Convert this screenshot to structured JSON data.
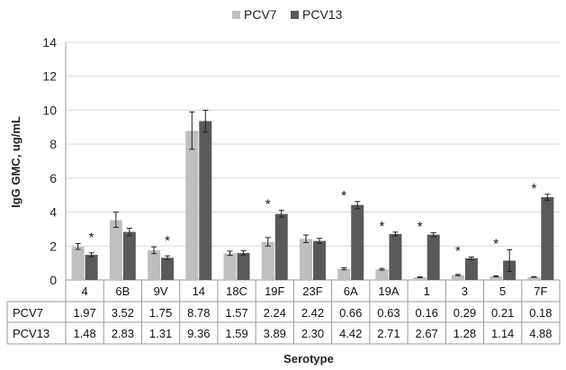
{
  "chart_data": {
    "type": "bar",
    "title": "",
    "xlabel": "Serotype",
    "ylabel": "IgG GMC, ug/mL",
    "ylim": [
      0,
      14
    ],
    "yticks": [
      0,
      2,
      4,
      6,
      8,
      10,
      12,
      14
    ],
    "categories": [
      "4",
      "6B",
      "9V",
      "14",
      "18C",
      "19F",
      "23F",
      "6A",
      "19A",
      "1",
      "3",
      "5",
      "7F"
    ],
    "series": [
      {
        "name": "PCV7",
        "color": "#bfbfbf",
        "values": [
          1.97,
          3.52,
          1.75,
          8.78,
          1.57,
          2.24,
          2.42,
          0.66,
          0.63,
          0.16,
          0.29,
          0.21,
          0.18
        ],
        "labels": [
          "1.97",
          "3.52",
          "1.75",
          "8.78",
          "1.57",
          "2.24",
          "2.42",
          "0.66",
          "0.63",
          "0.16",
          "0.29",
          "0.21",
          "0.18"
        ],
        "error_low": [
          1.8,
          3.1,
          1.55,
          7.7,
          1.45,
          2.0,
          2.2,
          0.6,
          0.58,
          0.14,
          0.25,
          0.19,
          0.16
        ],
        "error_high": [
          2.15,
          4.0,
          1.95,
          9.9,
          1.7,
          2.5,
          2.65,
          0.72,
          0.68,
          0.18,
          0.33,
          0.24,
          0.2
        ]
      },
      {
        "name": "PCV13",
        "color": "#595959",
        "values": [
          1.48,
          2.83,
          1.31,
          9.36,
          1.59,
          3.89,
          2.3,
          4.42,
          2.71,
          2.67,
          1.28,
          1.14,
          4.88
        ],
        "labels": [
          "1.48",
          "2.83",
          "1.31",
          "9.36",
          "1.59",
          "3.89",
          "2.30",
          "4.42",
          "2.71",
          "2.67",
          "1.28",
          "1.14",
          "4.88"
        ],
        "error_low": [
          1.38,
          2.6,
          1.2,
          8.7,
          1.45,
          3.7,
          2.15,
          4.2,
          2.6,
          2.55,
          1.2,
          0.5,
          4.7
        ],
        "error_high": [
          1.6,
          3.05,
          1.42,
          10.0,
          1.72,
          4.1,
          2.45,
          4.62,
          2.82,
          2.78,
          1.35,
          1.78,
          5.05
        ]
      }
    ],
    "significance_marker": "*",
    "significant_categories": [
      "4",
      "9V",
      "19F",
      "6A",
      "19A",
      "1",
      "3",
      "5",
      "7F"
    ],
    "legend_position": "top-center",
    "grid": true,
    "data_table": true
  }
}
